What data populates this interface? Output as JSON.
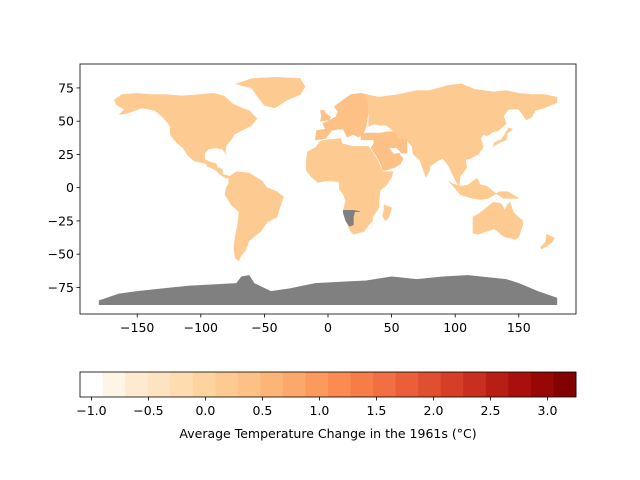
{
  "map": {
    "type": "choropleth",
    "projection": "plate-carree",
    "xlim": [
      -195,
      195
    ],
    "ylim": [
      -95,
      93
    ],
    "x_ticks": [
      -150,
      -100,
      -50,
      0,
      50,
      100,
      150
    ],
    "x_tick_labels": [
      "−150",
      "−100",
      "−50",
      "0",
      "50",
      "100",
      "150"
    ],
    "y_ticks": [
      75,
      50,
      25,
      0,
      -25,
      -50,
      -75
    ],
    "y_tick_labels": [
      "75",
      "50",
      "25",
      "0",
      "−25",
      "−50",
      "−75"
    ],
    "no_data_color": "#808080",
    "regions": [
      {
        "name": "North America",
        "value": 0.2
      },
      {
        "name": "Greenland",
        "value": 0.2
      },
      {
        "name": "Central America",
        "value": 0.2
      },
      {
        "name": "South America",
        "value": 0.2
      },
      {
        "name": "Europe",
        "value": 0.4
      },
      {
        "name": "Russia",
        "value": 0.2
      },
      {
        "name": "Asia",
        "value": 0.2
      },
      {
        "name": "Middle East",
        "value": 0.3
      },
      {
        "name": "Africa",
        "value": 0.2
      },
      {
        "name": "Namibia",
        "value": null
      },
      {
        "name": "Australia",
        "value": 0.2
      },
      {
        "name": "Indonesia",
        "value": 0.2
      },
      {
        "name": "Japan",
        "value": 0.2
      },
      {
        "name": "UK",
        "value": 0.3
      },
      {
        "name": "Madagascar",
        "value": 0.2
      },
      {
        "name": "New Zealand",
        "value": 0.2
      },
      {
        "name": "Antarctica",
        "value": null
      }
    ]
  },
  "colorbar": {
    "vmin": -1.1,
    "vmax": 3.25,
    "ticks": [
      -1.0,
      -0.5,
      0.0,
      0.5,
      1.0,
      1.5,
      2.0,
      2.5,
      3.0
    ],
    "tick_labels": [
      "−1.0",
      "−0.5",
      "0.0",
      "0.5",
      "1.0",
      "1.5",
      "2.0",
      "2.5",
      "3.0"
    ],
    "colors": [
      "#ffffff",
      "#fff5e6",
      "#feead0",
      "#fee3c0",
      "#fedcb0",
      "#fdd4a0",
      "#fdcb92",
      "#fdc085",
      "#fdb477",
      "#fca86a",
      "#fc9a5e",
      "#fb8b51",
      "#f77d48",
      "#f16f42",
      "#ea5f3a",
      "#e14f31",
      "#d63f27",
      "#c82f1e",
      "#b91e15",
      "#a8100c",
      "#960705",
      "#830000"
    ],
    "label": "Average Temperature Change in the 1961s (°C)"
  }
}
